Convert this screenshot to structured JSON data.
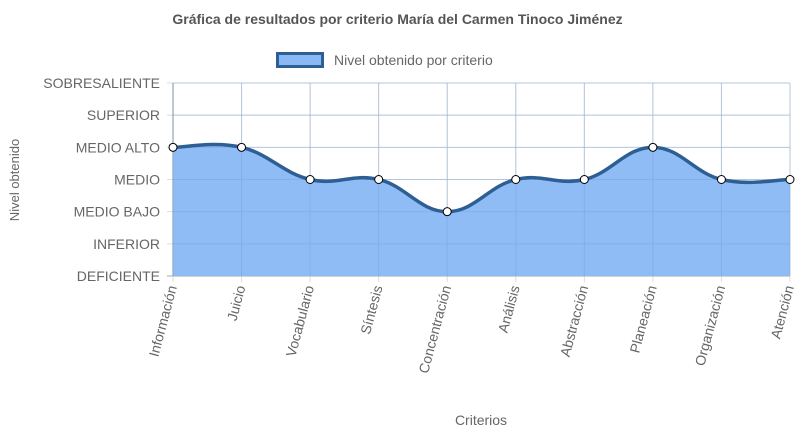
{
  "chart_data": {
    "type": "area",
    "title": "Gráfica de resultados por criterio María del Carmen Tinoco Jiménez",
    "xlabel": "Criterios",
    "ylabel": "Nivel obtenido",
    "categories": [
      "Información",
      "Juicio",
      "Vocabulario",
      "Síntesis",
      "Concentración",
      "Análisis",
      "Abstracción",
      "Planeación",
      "Organización",
      "Atención"
    ],
    "y_levels": [
      "DEFICIENTE",
      "INFERIOR",
      "MEDIO BAJO",
      "MEDIO",
      "MEDIO ALTO",
      "SUPERIOR",
      "SOBRESALIENTE"
    ],
    "ylim": [
      0,
      6
    ],
    "series": [
      {
        "name": "Nivel obtenido por criterio",
        "values": [
          4,
          4,
          3,
          3,
          2,
          3,
          3,
          4,
          3,
          3
        ]
      }
    ],
    "grid": true,
    "legend_position": "top-center",
    "colors": {
      "fill": "#8ab8f4",
      "line": "#2e5f94",
      "point_fill": "#ffffff",
      "point_stroke": "#000000",
      "grid": "#dcdcdc",
      "axis": "#888888"
    }
  }
}
